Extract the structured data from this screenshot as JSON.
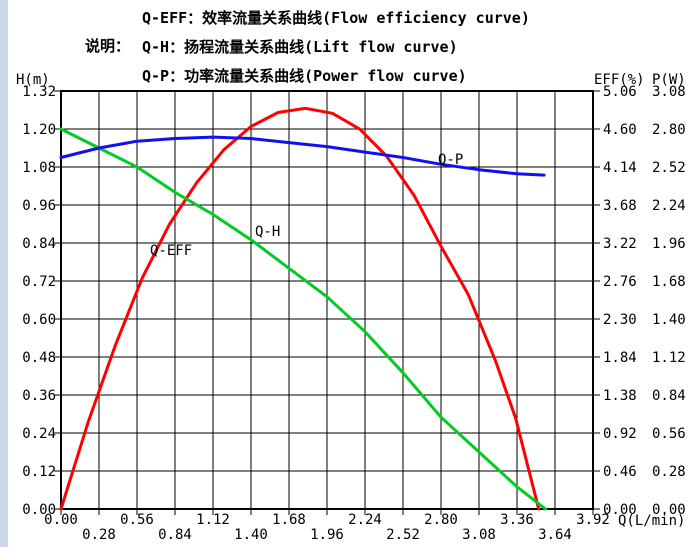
{
  "page": {
    "background": "#ffffff",
    "left_strip_color": "#ccd7e9"
  },
  "legend": {
    "prefix": "说明：",
    "lines": [
      "Q-EFF：效率流量关系曲线(Flow efficiency curve)",
      "Q-H：扬程流量关系曲线(Lift flow curve)",
      "Q-P：功率流量关系曲线(Power flow curve)"
    ]
  },
  "axes": {
    "left": {
      "title": "H(m)",
      "ticks": [
        "1.32",
        "1.20",
        "1.08",
        "0.96",
        "0.84",
        "0.72",
        "0.60",
        "0.48",
        "0.36",
        "0.24",
        "0.12",
        "0.00"
      ]
    },
    "right_eff": {
      "title": "EFF(%)",
      "ticks": [
        "5.06",
        "4.60",
        "4.14",
        "3.68",
        "3.22",
        "2.76",
        "2.30",
        "1.84",
        "1.38",
        "0.92",
        "0.46",
        "0.00"
      ]
    },
    "right_p": {
      "title": "P(W)",
      "ticks": [
        "3.08",
        "2.80",
        "2.52",
        "2.24",
        "1.96",
        "1.68",
        "1.40",
        "1.12",
        "0.84",
        "0.56",
        "0.28",
        "0.00"
      ]
    },
    "x": {
      "title": "Q(L/min)",
      "ticks": [
        "0.00",
        "0.28",
        "0.56",
        "0.84",
        "1.12",
        "1.40",
        "1.68",
        "1.96",
        "2.24",
        "2.52",
        "2.80",
        "3.08",
        "3.36",
        "3.64",
        "3.92"
      ]
    }
  },
  "chart_data": {
    "type": "line",
    "title": "",
    "xlabel": "Q(L/min)",
    "x_range": [
      0,
      3.92
    ],
    "x_tick_step": 0.28,
    "grid": true,
    "axes": {
      "left": {
        "label": "H(m)",
        "range": [
          0,
          1.32
        ],
        "tick_step": 0.12
      },
      "right1": {
        "label": "EFF(%)",
        "range": [
          0,
          5.06
        ],
        "tick_step": 0.46
      },
      "right2": {
        "label": "P(W)",
        "range": [
          0,
          3.08
        ],
        "tick_step": 0.28
      }
    },
    "series": [
      {
        "name": "Q-EFF",
        "axis": "right1",
        "color": "#ff0000",
        "x": [
          0,
          0.2,
          0.4,
          0.6,
          0.8,
          1.0,
          1.2,
          1.4,
          1.6,
          1.8,
          2.0,
          2.2,
          2.4,
          2.6,
          2.8,
          3.0,
          3.2,
          3.35,
          3.52
        ],
        "y": [
          0,
          1.05,
          1.98,
          2.8,
          3.45,
          3.95,
          4.35,
          4.63,
          4.8,
          4.85,
          4.79,
          4.6,
          4.27,
          3.8,
          3.18,
          2.6,
          1.8,
          1.1,
          0
        ]
      },
      {
        "name": "Q-H",
        "axis": "left",
        "color": "#00cc22",
        "x": [
          0,
          0.28,
          0.56,
          0.84,
          1.12,
          1.4,
          1.68,
          1.96,
          2.24,
          2.52,
          2.8,
          3.08,
          3.36,
          3.57
        ],
        "y": [
          1.2,
          1.14,
          1.08,
          1.0,
          0.93,
          0.85,
          0.76,
          0.67,
          0.56,
          0.43,
          0.29,
          0.18,
          0.07,
          0
        ]
      },
      {
        "name": "Q-P",
        "axis": "right2",
        "color": "#1111ee",
        "x": [
          0,
          0.28,
          0.56,
          0.84,
          1.12,
          1.4,
          1.68,
          1.96,
          2.24,
          2.52,
          2.8,
          3.08,
          3.36,
          3.56
        ],
        "y": [
          2.59,
          2.66,
          2.71,
          2.73,
          2.74,
          2.73,
          2.7,
          2.67,
          2.63,
          2.59,
          2.54,
          2.5,
          2.47,
          2.46
        ]
      }
    ]
  }
}
